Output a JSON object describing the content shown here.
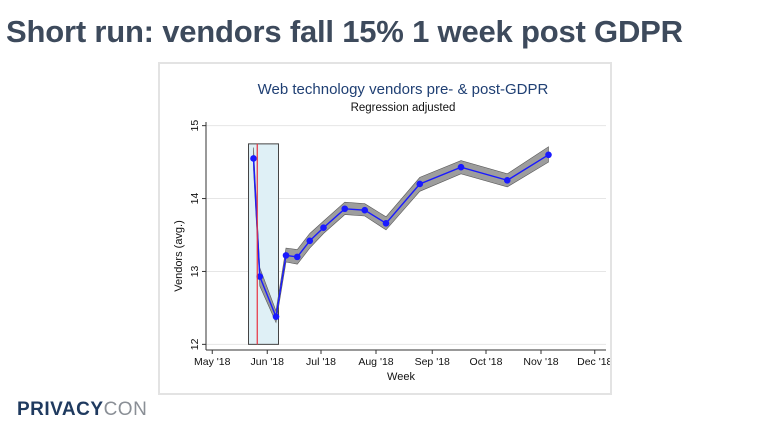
{
  "slide": {
    "title": "Short run: vendors fall 15% 1 week post GDPR"
  },
  "logo": {
    "text_bold": "PRIVACY",
    "text_light": "CON"
  },
  "chart_data": {
    "type": "line",
    "title": "Web technology vendors pre- & post-GDPR",
    "subtitle": "Regression adjusted",
    "xlabel": "Week",
    "ylabel": "Vendors (avg.)",
    "x_ticks": [
      {
        "label": "May '18",
        "week": 0
      },
      {
        "label": "Jun '18",
        "week": 4.4
      },
      {
        "label": "Jul '18",
        "week": 8.7
      },
      {
        "label": "Aug '18",
        "week": 13.1
      },
      {
        "label": "Sep '18",
        "week": 17.6
      },
      {
        "label": "Oct '18",
        "week": 21.9
      },
      {
        "label": "Nov '18",
        "week": 26.3
      },
      {
        "label": "Dec '18",
        "week": 30.6
      }
    ],
    "xlim": [
      -0.5,
      31.5
    ],
    "ylim": [
      11.95,
      15.05
    ],
    "y_ticks": [
      12,
      13,
      14,
      15
    ],
    "gdpr_week": 3.6,
    "highlight_range": [
      2.9,
      5.3
    ],
    "grid": true,
    "series": [
      {
        "name": "Vendors (avg.)",
        "color": "#1a1aff",
        "band_color": "#8c8c8c",
        "x": [
          3.3,
          3.8,
          5.1,
          5.9,
          6.8,
          7.8,
          8.9,
          10.6,
          12.2,
          13.9,
          16.6,
          19.9,
          23.6,
          26.9
        ],
        "y": [
          14.55,
          12.93,
          12.38,
          13.22,
          13.2,
          13.42,
          13.6,
          13.86,
          13.84,
          13.66,
          14.2,
          14.43,
          14.25,
          14.6
        ],
        "lower": [
          14.4,
          12.8,
          12.3,
          13.13,
          13.1,
          13.32,
          13.52,
          13.78,
          13.76,
          13.57,
          14.1,
          14.34,
          14.16,
          14.5
        ],
        "upper": [
          14.7,
          13.05,
          12.46,
          13.32,
          13.3,
          13.52,
          13.69,
          13.95,
          13.93,
          13.75,
          14.29,
          14.52,
          14.34,
          14.71
        ]
      }
    ]
  },
  "colors": {
    "gdpr_line": "#e8303f",
    "highlight_fill": "#dff0f6",
    "axis": "#333333",
    "grid": "#e6e6e6"
  }
}
